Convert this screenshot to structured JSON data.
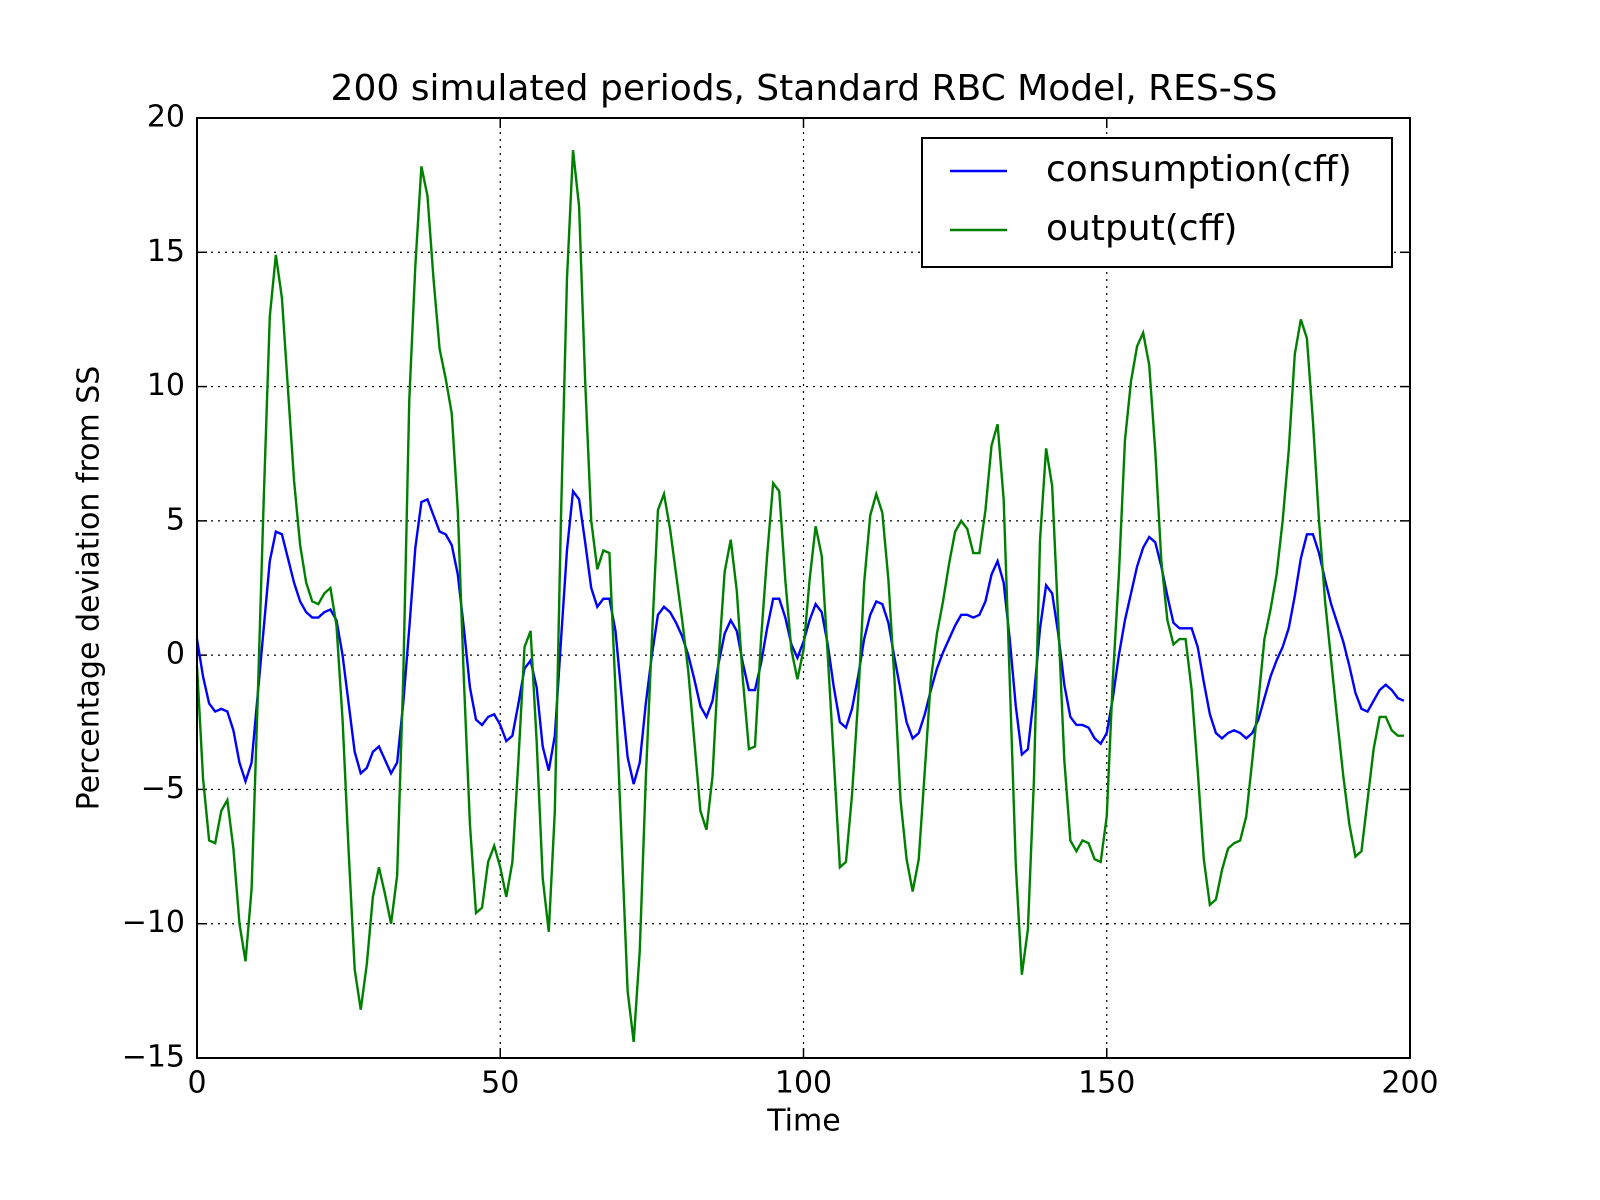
{
  "chart_data": {
    "type": "line",
    "title": "200 simulated periods, Standard RBC Model, RES-SS",
    "x_label": "Time",
    "y_label": "Percentage deviation from SS",
    "x": [
      0,
      1,
      2,
      3,
      4,
      5,
      6,
      7,
      8,
      9,
      10,
      11,
      12,
      13,
      14,
      15,
      16,
      17,
      18,
      19,
      20,
      21,
      22,
      23,
      24,
      25,
      26,
      27,
      28,
      29,
      30,
      31,
      32,
      33,
      34,
      35,
      36,
      37,
      38,
      39,
      40,
      41,
      42,
      43,
      44,
      45,
      46,
      47,
      48,
      49,
      50,
      51,
      52,
      53,
      54,
      55,
      56,
      57,
      58,
      59,
      60,
      61,
      62,
      63,
      64,
      65,
      66,
      67,
      68,
      69,
      70,
      71,
      72,
      73,
      74,
      75,
      76,
      77,
      78,
      79,
      80,
      81,
      82,
      83,
      84,
      85,
      86,
      87,
      88,
      89,
      90,
      91,
      92,
      93,
      94,
      95,
      96,
      97,
      98,
      99,
      100,
      101,
      102,
      103,
      104,
      105,
      106,
      107,
      108,
      109,
      110,
      111,
      112,
      113,
      114,
      115,
      116,
      117,
      118,
      119,
      120,
      121,
      122,
      123,
      124,
      125,
      126,
      127,
      128,
      129,
      130,
      131,
      132,
      133,
      134,
      135,
      136,
      137,
      138,
      139,
      140,
      141,
      142,
      143,
      144,
      145,
      146,
      147,
      148,
      149,
      150,
      151,
      152,
      153,
      154,
      155,
      156,
      157,
      158,
      159,
      160,
      161,
      162,
      163,
      164,
      165,
      166,
      167,
      168,
      169,
      170,
      171,
      172,
      173,
      174,
      175,
      176,
      177,
      178,
      179,
      180,
      181,
      182,
      183,
      184,
      185,
      186,
      187,
      188,
      189,
      190,
      191,
      192,
      193,
      194,
      195,
      196,
      197,
      198,
      199
    ],
    "series": [
      {
        "name": "consumption(cff)",
        "color": "#0000ff",
        "values": [
          0.6,
          -0.8,
          -1.8,
          -2.1,
          -2.0,
          -2.1,
          -2.8,
          -4.0,
          -4.7,
          -4.0,
          -1.5,
          1.0,
          3.5,
          4.6,
          4.5,
          3.6,
          2.7,
          2.0,
          1.6,
          1.4,
          1.4,
          1.6,
          1.7,
          1.3,
          0.0,
          -1.8,
          -3.6,
          -4.4,
          -4.2,
          -3.6,
          -3.4,
          -3.9,
          -4.4,
          -4.0,
          -1.8,
          1.0,
          4.0,
          5.7,
          5.8,
          5.2,
          4.6,
          4.5,
          4.1,
          3.0,
          1.0,
          -1.2,
          -2.4,
          -2.6,
          -2.3,
          -2.2,
          -2.6,
          -3.2,
          -3.0,
          -1.8,
          -0.5,
          -0.2,
          -1.2,
          -3.4,
          -4.3,
          -3.0,
          0.5,
          3.9,
          6.1,
          5.8,
          4.2,
          2.5,
          1.8,
          2.1,
          2.1,
          0.9,
          -1.5,
          -3.8,
          -4.8,
          -4.0,
          -1.8,
          0.0,
          1.5,
          1.8,
          1.6,
          1.2,
          0.7,
          0.0,
          -0.9,
          -1.9,
          -2.3,
          -1.7,
          -0.3,
          0.8,
          1.3,
          0.9,
          -0.3,
          -1.3,
          -1.3,
          -0.3,
          1.0,
          2.1,
          2.1,
          1.4,
          0.4,
          -0.1,
          0.5,
          1.3,
          1.9,
          1.6,
          0.4,
          -1.2,
          -2.5,
          -2.7,
          -2.0,
          -0.8,
          0.6,
          1.5,
          2.0,
          1.9,
          1.2,
          -0.1,
          -1.3,
          -2.5,
          -3.1,
          -2.9,
          -2.2,
          -1.3,
          -0.5,
          0.1,
          0.6,
          1.1,
          1.5,
          1.5,
          1.4,
          1.5,
          2.0,
          3.0,
          3.5,
          2.7,
          0.6,
          -1.9,
          -3.7,
          -3.5,
          -1.5,
          1.0,
          2.6,
          2.3,
          0.8,
          -1.1,
          -2.3,
          -2.6,
          -2.6,
          -2.7,
          -3.1,
          -3.3,
          -2.9,
          -1.6,
          0.0,
          1.3,
          2.3,
          3.3,
          4.0,
          4.4,
          4.2,
          3.3,
          2.2,
          1.2,
          1.0,
          1.0,
          1.0,
          0.3,
          -1.0,
          -2.2,
          -2.9,
          -3.1,
          -2.9,
          -2.8,
          -2.9,
          -3.1,
          -2.9,
          -2.4,
          -1.6,
          -0.8,
          -0.2,
          0.3,
          1.0,
          2.2,
          3.6,
          4.5,
          4.5,
          3.8,
          2.8,
          1.9,
          1.2,
          0.5,
          -0.4,
          -1.4,
          -2.0,
          -2.1,
          -1.7,
          -1.3,
          -1.1,
          -1.3,
          -1.6,
          -1.7
        ]
      },
      {
        "name": "output(cff)",
        "color": "#008000",
        "values": [
          -0.4,
          -4.6,
          -6.9,
          -7.0,
          -5.8,
          -5.4,
          -7.2,
          -10.0,
          -11.4,
          -8.7,
          -1.7,
          5.8,
          12.6,
          14.9,
          13.3,
          9.9,
          6.5,
          4.1,
          2.7,
          2.0,
          1.9,
          2.3,
          2.5,
          1.1,
          -2.4,
          -7.3,
          -11.7,
          -13.2,
          -11.5,
          -9.0,
          -7.9,
          -8.9,
          -10.0,
          -8.2,
          -0.9,
          9.5,
          14.5,
          18.2,
          17.1,
          14.0,
          11.4,
          10.3,
          9.0,
          5.4,
          -0.9,
          -6.3,
          -9.6,
          -9.4,
          -7.7,
          -7.1,
          -7.9,
          -9.0,
          -7.7,
          -3.9,
          0.3,
          0.9,
          -3.2,
          -8.3,
          -10.3,
          -5.8,
          5.0,
          14.0,
          18.8,
          16.7,
          10.2,
          5.0,
          3.2,
          3.9,
          3.8,
          -1.3,
          -6.9,
          -12.5,
          -14.4,
          -11.0,
          -4.6,
          0.6,
          5.4,
          6.0,
          4.7,
          3.0,
          1.3,
          -0.6,
          -3.2,
          -5.8,
          -6.5,
          -4.5,
          -0.2,
          3.1,
          4.3,
          2.4,
          -0.9,
          -3.5,
          -3.4,
          0.6,
          3.7,
          6.4,
          6.1,
          2.8,
          0.2,
          -0.9,
          0.2,
          2.8,
          4.8,
          3.7,
          0.0,
          -3.9,
          -7.9,
          -7.7,
          -5.2,
          -1.7,
          2.7,
          5.2,
          6.0,
          5.3,
          2.8,
          -0.9,
          -5.4,
          -7.6,
          -8.8,
          -7.6,
          -4.3,
          -0.9,
          0.8,
          2.0,
          3.4,
          4.6,
          5.0,
          4.7,
          3.8,
          3.8,
          5.4,
          7.8,
          8.6,
          5.8,
          -0.9,
          -7.8,
          -11.9,
          -10.2,
          -4.6,
          4.3,
          7.7,
          6.3,
          1.3,
          -3.9,
          -6.9,
          -7.3,
          -6.9,
          -7.0,
          -7.6,
          -7.7,
          -6.0,
          -0.9,
          3.0,
          8.0,
          10.2,
          11.5,
          12.0,
          10.8,
          7.6,
          3.5,
          1.3,
          0.4,
          0.6,
          0.6,
          -1.3,
          -4.3,
          -7.6,
          -9.3,
          -9.1,
          -8.0,
          -7.2,
          -7.0,
          -6.9,
          -6.0,
          -3.9,
          -1.7,
          0.6,
          1.7,
          3.0,
          5.0,
          7.6,
          11.2,
          12.5,
          11.8,
          8.7,
          5.0,
          2.0,
          -0.2,
          -2.4,
          -4.5,
          -6.3,
          -7.5,
          -7.3,
          -5.4,
          -3.5,
          -2.3,
          -2.3,
          -2.8,
          -3.0,
          -3.0
        ]
      }
    ],
    "xlim": [
      0,
      200
    ],
    "xticks": [
      0,
      50,
      100,
      150,
      200
    ],
    "ylim": [
      -15,
      20
    ],
    "yticks": [
      {
        "value": -15,
        "label": "−15"
      },
      {
        "value": -10,
        "label": "−10"
      },
      {
        "value": -5,
        "label": "−5"
      },
      0,
      5,
      10,
      15,
      20
    ],
    "grid": true,
    "legend": "upper right"
  }
}
